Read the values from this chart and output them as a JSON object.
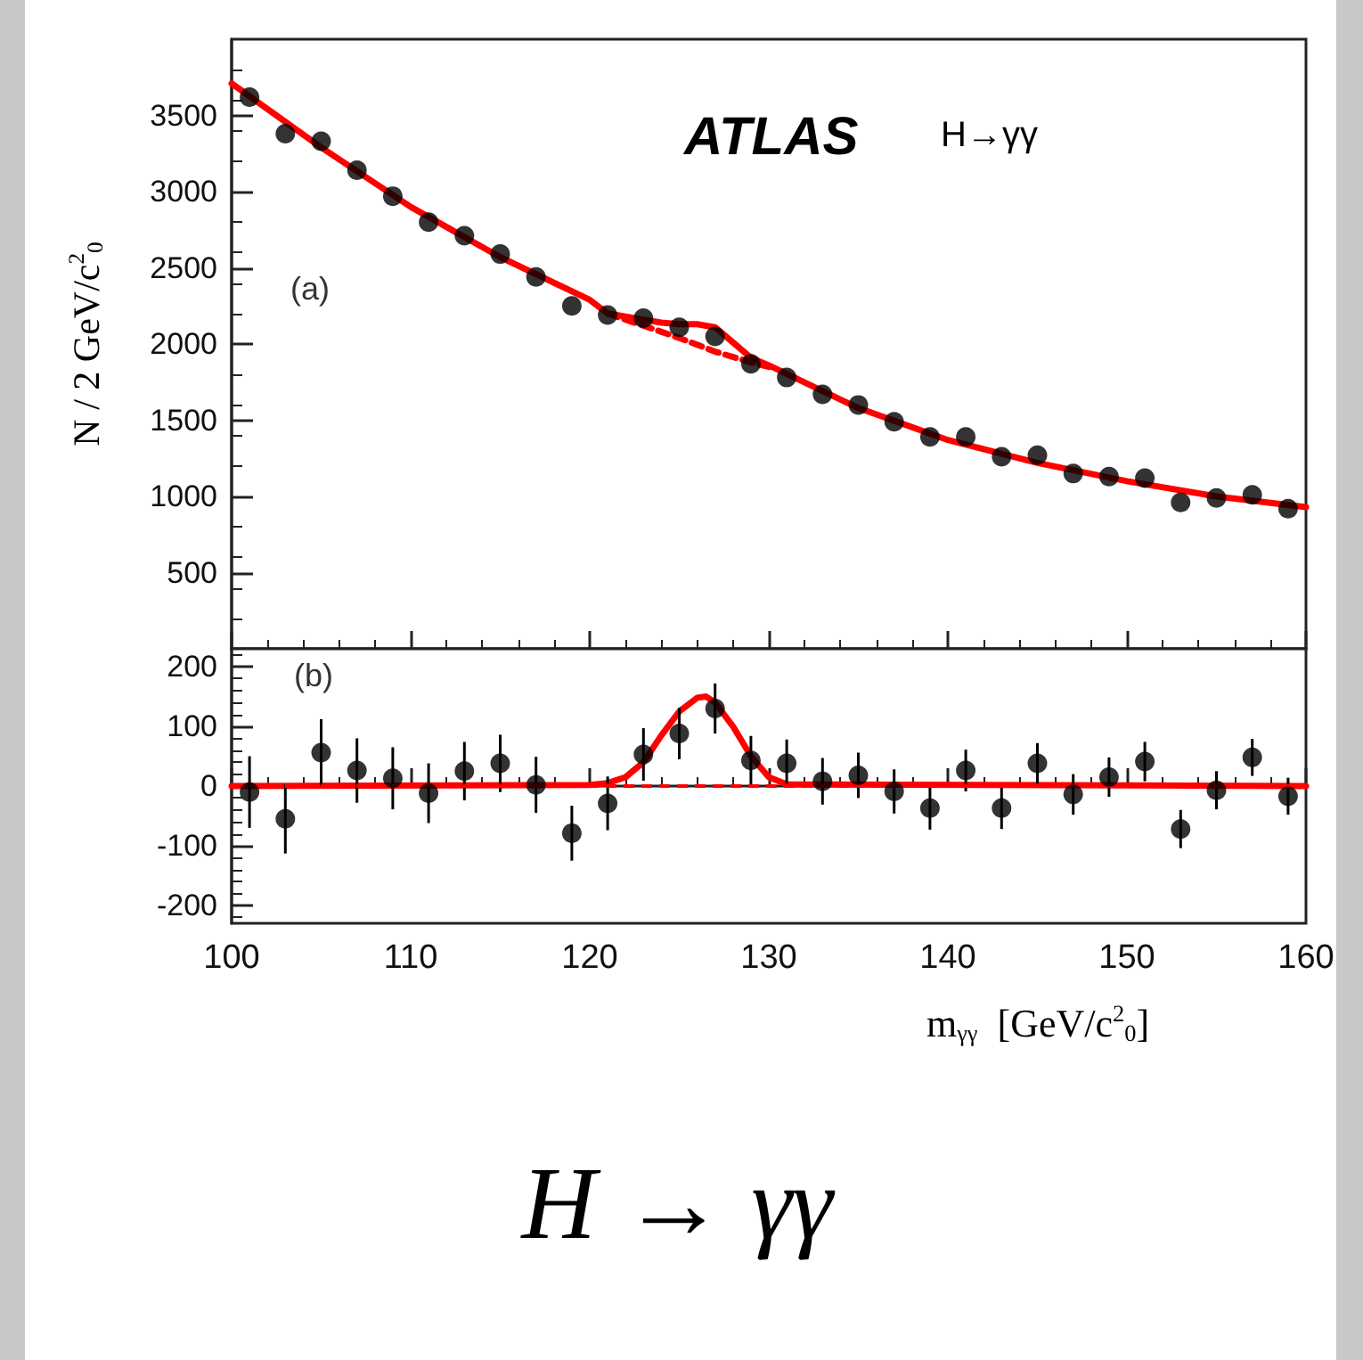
{
  "chart_data": [
    {
      "type": "scatter",
      "x": [
        101,
        103,
        105,
        107,
        109,
        111,
        113,
        115,
        117,
        119,
        121,
        123,
        125,
        127,
        129,
        131,
        133,
        135,
        137,
        139,
        141,
        143,
        145,
        147,
        149,
        151,
        153,
        155,
        157,
        159
      ],
      "series": [
        {
          "type": "scatter",
          "color": "#000000",
          "marker": "circle",
          "values": [
            3620,
            3380,
            3330,
            3140,
            2970,
            2800,
            2710,
            2590,
            2440,
            2250,
            2190,
            2170,
            2110,
            2050,
            1870,
            1780,
            1670,
            1600,
            1490,
            1390,
            1390,
            1260,
            1270,
            1150,
            1130,
            1120,
            960,
            990,
            1010,
            920
          ]
        },
        {
          "type": "line",
          "color": "#ff0000",
          "marker": "none",
          "line_style": "solid",
          "x": [
            100,
            105,
            110,
            115,
            120,
            121,
            123,
            124,
            125,
            126,
            127,
            128,
            129,
            130,
            135,
            140,
            145,
            150,
            155,
            160
          ],
          "values": [
            3710,
            3290,
            2900,
            2570,
            2290,
            2200,
            2160,
            2140,
            2130,
            2130,
            2110,
            2010,
            1910,
            1860,
            1580,
            1370,
            1220,
            1100,
            1000,
            930
          ]
        },
        {
          "type": "line",
          "color": "#ff0000",
          "marker": "none",
          "line_style": "dashed",
          "x": [
            121,
            123,
            125,
            127,
            129,
            130
          ],
          "values": [
            2200,
            2120,
            2040,
            1950,
            1880,
            1850
          ]
        }
      ],
      "xlim": [
        100,
        160
      ],
      "xticks": [
        100,
        110,
        120,
        130,
        140,
        150,
        160
      ],
      "ylim": [
        0,
        4000
      ],
      "yticks": [
        500,
        1000,
        1500,
        2000,
        2500,
        3000,
        3500
      ],
      "ylabel": "N / 2 GeV/c$^{2}$$_{0}$",
      "tick_labels": "y",
      "annotations": [
        "ATLAS",
        "H→γγ",
        "(a)"
      ]
    },
    {
      "type": "scatter",
      "x": [
        101,
        103,
        105,
        107,
        109,
        111,
        113,
        115,
        117,
        119,
        121,
        123,
        125,
        127,
        129,
        131,
        133,
        135,
        137,
        139,
        141,
        143,
        145,
        147,
        149,
        151,
        153,
        155,
        157,
        159
      ],
      "series": [
        {
          "type": "scatter",
          "color": "#000000",
          "marker": "circle",
          "values": [
            -10,
            -55,
            56,
            26,
            13,
            -12,
            25,
            38,
            2,
            -79,
            -29,
            53,
            88,
            130,
            43,
            38,
            8,
            18,
            -9,
            -37,
            26,
            -37,
            38,
            -14,
            15,
            41,
            -72,
            -7,
            48,
            -17
          ],
          "errors": [
            60,
            58,
            56,
            54,
            52,
            50,
            49,
            48,
            47,
            46,
            45,
            44,
            43,
            42,
            41,
            40,
            39,
            38,
            37,
            36,
            35,
            35,
            34,
            34,
            33,
            33,
            32,
            32,
            31,
            31
          ]
        },
        {
          "type": "line",
          "color": "#ff0000",
          "marker": "none",
          "line_style": "solid",
          "x": [
            100,
            120,
            121,
            122,
            123,
            124,
            125,
            126,
            126.5,
            127,
            128,
            129,
            130,
            131,
            160
          ],
          "values": [
            0,
            2,
            5,
            15,
            40,
            85,
            125,
            148,
            150,
            140,
            100,
            50,
            15,
            3,
            0
          ]
        }
      ],
      "ref_lines": [
        {
          "axis": "y",
          "value": 0,
          "color": "#ff0000",
          "line_style": "dashed"
        }
      ],
      "xlim": [
        100,
        160
      ],
      "xticks": [
        100,
        110,
        120,
        130,
        140,
        150,
        160
      ],
      "ylim": [
        -230,
        230
      ],
      "yticks": [
        -200,
        -100,
        0,
        100,
        200
      ],
      "xlabel": "m$_{γγ}$  [GeV/c$^{2}$$_{0}$]",
      "annotations": [
        "(b)",
        "H → γγ"
      ]
    }
  ]
}
